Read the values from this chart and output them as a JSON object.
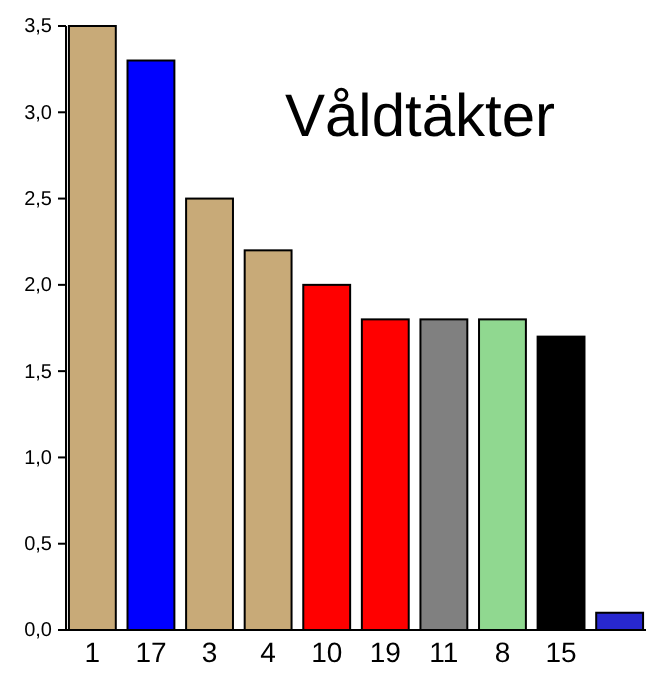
{
  "chart_data": {
    "type": "bar",
    "title": "Våldtäkter",
    "categories": [
      "1",
      "17",
      "3",
      "4",
      "10",
      "19",
      "11",
      "8",
      "15",
      null
    ],
    "values": [
      3.5,
      3.3,
      2.5,
      2.2,
      2.0,
      1.8,
      1.8,
      1.8,
      1.7,
      0.1
    ],
    "colors": [
      "#c8aa78",
      "#0000ff",
      "#c8aa78",
      "#c8aa78",
      "#ff0000",
      "#ff0000",
      "#808080",
      "#90d890",
      "#000000",
      "#2828d0"
    ],
    "ylim": [
      0,
      3.5
    ],
    "yticks": [
      {
        "value": 0,
        "label": "0,0"
      },
      {
        "value": 0.5,
        "label": "0,5"
      },
      {
        "value": 1,
        "label": "1,0"
      },
      {
        "value": 1.5,
        "label": "1,5"
      },
      {
        "value": 2,
        "label": "2,0"
      },
      {
        "value": 2.5,
        "label": "2,5"
      },
      {
        "value": 3,
        "label": "3,0"
      },
      {
        "value": 3.5,
        "label": "3,5"
      }
    ]
  }
}
